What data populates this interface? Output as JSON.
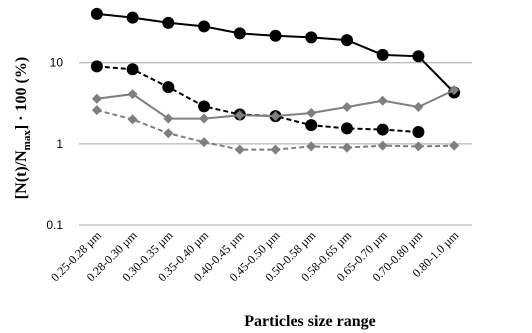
{
  "chart_data": {
    "type": "line",
    "title": "",
    "xlabel": "Particles size range",
    "ylabel": {
      "prefix": "[N(t)/N",
      "subscript": "max",
      "suffix": "] · 100 (%)"
    },
    "yscale": "log",
    "ylim": [
      0.1,
      50
    ],
    "yticks": [
      "0.1",
      "1",
      "10"
    ],
    "grid": "horizontal",
    "legend": "none",
    "categories": [
      "0.25-0.28 µm",
      "0.28-0.30 µm",
      "0.30-0.35 µm",
      "0.35-0.40 µm",
      "0.40-0.45 µm",
      "0.45-0.50 µm",
      "0.50-0.58 µm",
      "0.58-0.65 µm",
      "0.65-0.70 µm",
      "0.70-0.80 µm",
      "0.80-1.0 µm"
    ],
    "series": [
      {
        "color": "#000000",
        "dash": "solid",
        "marker": "circle",
        "values": [
          40,
          36,
          31,
          28,
          23,
          21.5,
          20.5,
          19,
          12.5,
          12,
          4.3
        ]
      },
      {
        "color": "#000000",
        "dash": "dashed",
        "marker": "circle",
        "values": [
          9,
          8.3,
          5,
          2.9,
          2.3,
          2.2,
          1.7,
          1.55,
          1.5,
          1.4,
          null
        ]
      },
      {
        "color": "#7f7f7f",
        "dash": "solid",
        "marker": "diamond",
        "values": [
          3.6,
          4.1,
          2.05,
          2.05,
          2.25,
          2.2,
          2.4,
          2.85,
          3.4,
          2.85,
          4.6
        ]
      },
      {
        "color": "#7f7f7f",
        "dash": "dashed",
        "marker": "diamond",
        "values": [
          2.6,
          2.0,
          1.35,
          1.05,
          0.85,
          0.85,
          0.93,
          0.9,
          0.95,
          0.93,
          0.95
        ]
      }
    ]
  }
}
